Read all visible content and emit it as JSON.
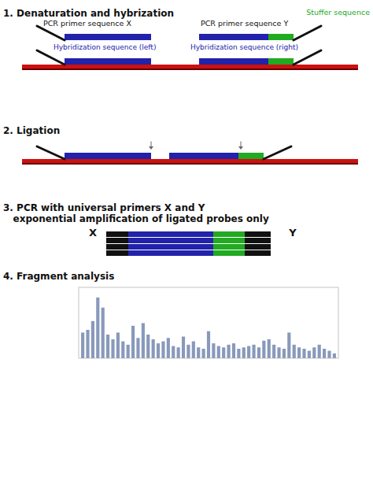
{
  "chart_data": {
    "type": "bar",
    "title": "4. Fragment analysis",
    "annotations": [
      "1. Denaturation and hybrization",
      "PCR primer sequence X",
      "PCR primer sequence Y",
      "Stuffer sequence",
      "Hybridization sequence (left)",
      "Hybridization sequence (right)",
      "2. Ligation",
      "3. PCR with universal primers X and Y",
      "   exponential amplification of ligated probes only",
      "X",
      "Y"
    ],
    "categories": [
      null,
      null,
      null,
      null,
      null,
      null,
      null,
      null,
      null,
      null,
      null,
      null,
      null,
      null,
      null,
      null,
      null,
      null,
      null,
      null,
      null,
      null,
      null,
      null,
      null,
      null,
      null,
      null,
      null,
      null,
      null,
      null,
      null,
      null,
      null,
      null,
      null,
      null,
      null,
      null,
      null,
      null,
      null,
      null,
      null,
      null,
      null,
      null,
      null,
      null,
      null
    ],
    "values": [
      0.38,
      0.42,
      0.55,
      0.9,
      0.75,
      0.35,
      0.28,
      0.38,
      0.25,
      0.2,
      0.48,
      0.3,
      0.52,
      0.35,
      0.28,
      0.22,
      0.25,
      0.3,
      0.18,
      0.16,
      0.32,
      0.2,
      0.25,
      0.16,
      0.14,
      0.4,
      0.22,
      0.18,
      0.16,
      0.2,
      0.22,
      0.14,
      0.16,
      0.18,
      0.2,
      0.16,
      0.26,
      0.28,
      0.2,
      0.16,
      0.14,
      0.38,
      0.2,
      0.16,
      0.14,
      0.11,
      0.16,
      0.2,
      0.14,
      0.11,
      0.07
    ],
    "color": "#8899bb",
    "ylim": [
      0,
      1.05
    ],
    "tick_labels": false
  }
}
